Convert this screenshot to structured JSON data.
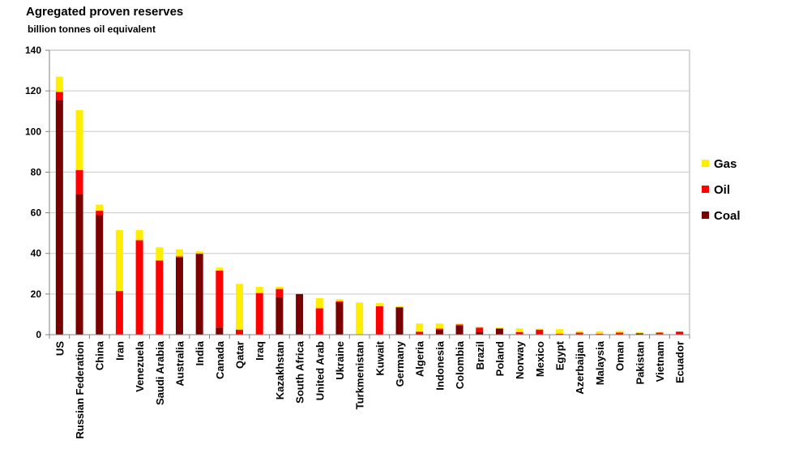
{
  "chart_data": {
    "type": "bar",
    "stacked": true,
    "title": "Agregated proven reserves",
    "subtitle": "billion tonnes oil equivalent",
    "xlabel": "",
    "ylabel": "",
    "ylim": [
      0,
      140
    ],
    "yticks": [
      0,
      20,
      40,
      60,
      80,
      100,
      120,
      140
    ],
    "grid": true,
    "legend_position": "right",
    "categories": [
      "US",
      "Russian Federation",
      "China",
      "Iran",
      "Venezuela",
      "Saudi Arabia",
      "Australia",
      "India",
      "Canada",
      "Qatar",
      "Iraq",
      "Kazakhstan",
      "South Africa",
      "United Arab",
      "Ukraine",
      "Turkmenistan",
      "Kuwait",
      "Germany",
      "Algeria",
      "Indonesia",
      "Colombia",
      "Brazil",
      "Poland",
      "Norway",
      "Mexico",
      "Egypt",
      "Azerbaijan",
      "Malaysia",
      "Oman",
      "Pakistan",
      "Vietnam",
      "Ecuador"
    ],
    "series": [
      {
        "name": "Coal",
        "color": "#7a0000",
        "values": [
          115.5,
          69,
          59,
          0,
          0,
          0,
          38,
          39.5,
          3.5,
          0,
          0,
          18.5,
          20,
          0,
          16,
          0,
          0,
          13.5,
          0,
          2.5,
          4.5,
          1.5,
          3,
          0.3,
          0,
          0,
          0,
          0,
          0,
          0.5,
          0.3,
          0
        ]
      },
      {
        "name": "Oil",
        "color": "#ff0000",
        "values": [
          4,
          12,
          2,
          21.5,
          46.5,
          36.5,
          0.5,
          0.5,
          28,
          2.5,
          20.5,
          4,
          0,
          13,
          0.5,
          0,
          14,
          0,
          1.5,
          0.5,
          0.5,
          2,
          0,
          1,
          2.5,
          0.5,
          1,
          0.5,
          1,
          0.3,
          0.7,
          1.5
        ]
      },
      {
        "name": "Gas",
        "color": "#ffee00",
        "values": [
          7.5,
          29.5,
          3,
          30,
          5,
          6.5,
          3.5,
          1,
          1.5,
          22.5,
          3,
          1,
          0,
          5,
          1,
          15.8,
          1.5,
          0.5,
          4,
          2.5,
          0.5,
          0.3,
          0.5,
          1.8,
          0.5,
          2.2,
          0.8,
          1.2,
          0.8,
          0.4,
          0.3,
          0
        ]
      }
    ],
    "legend_order": [
      "Gas",
      "Oil",
      "Coal"
    ]
  }
}
